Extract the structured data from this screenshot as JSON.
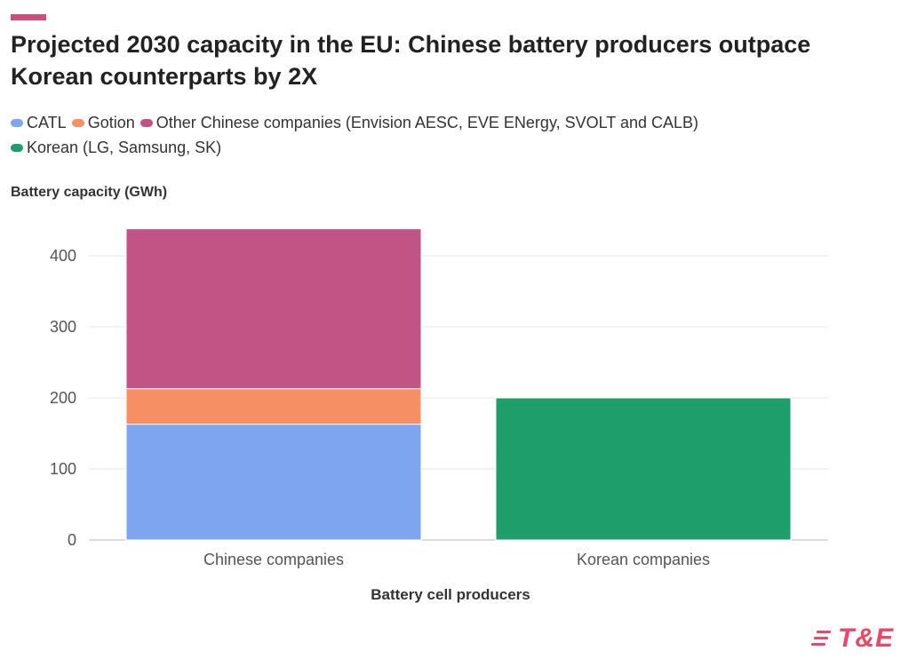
{
  "header": {
    "title": "Projected 2030 capacity in the EU: Chinese battery producers outpace Korean counterparts by 2X",
    "accent_color": "#c9507f"
  },
  "legend": {
    "items": [
      {
        "label": "CATL",
        "color": "#7ea6f0"
      },
      {
        "label": "Gotion",
        "color": "#f68f63"
      },
      {
        "label": "Other Chinese companies (Envision AESC, EVE ENergy, SVOLT and CALB)",
        "color": "#c25385"
      },
      {
        "label": "Korean (LG, Samsung, SK)",
        "color": "#1e9e6b"
      }
    ]
  },
  "chart_data": {
    "type": "bar",
    "stacked": true,
    "title": "Projected 2030 capacity in the EU: Chinese battery producers outpace Korean counterparts by 2X",
    "xlabel": "Battery cell producers",
    "ylabel": "Battery capacity (GWh)",
    "categories": [
      "Chinese companies",
      "Korean companies"
    ],
    "series": [
      {
        "name": "CATL",
        "color": "#7ea6f0",
        "values": [
          163,
          0
        ]
      },
      {
        "name": "Gotion",
        "color": "#f68f63",
        "values": [
          50,
          0
        ]
      },
      {
        "name": "Other Chinese companies (Envision AESC, EVE ENergy, SVOLT and CALB)",
        "color": "#c25385",
        "values": [
          225,
          0
        ]
      },
      {
        "name": "Korean (LG, Samsung, SK)",
        "color": "#1e9e6b",
        "values": [
          0,
          200
        ]
      }
    ],
    "ylim": [
      0,
      440
    ],
    "yticks": [
      0,
      100,
      200,
      300,
      400
    ],
    "grid": true,
    "legend_position": "top"
  },
  "branding": {
    "logo_text": "T&E",
    "logo_color": "#e8496b"
  }
}
